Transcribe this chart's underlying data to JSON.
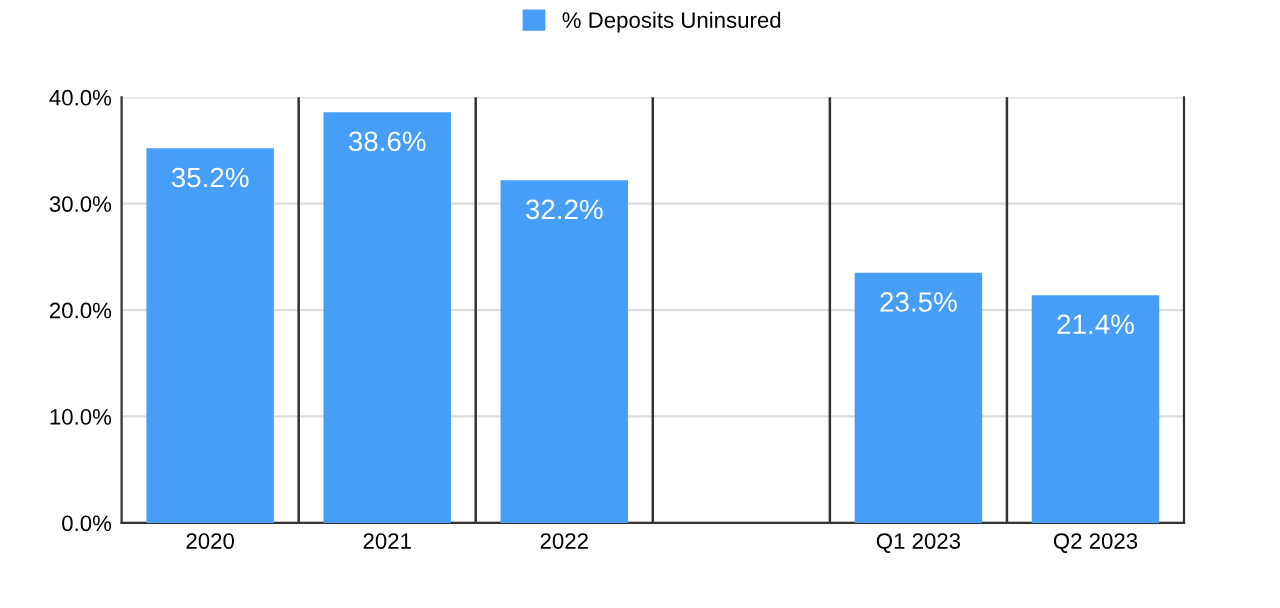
{
  "chart_data": {
    "type": "bar",
    "categories": [
      "2020",
      "2021",
      "2022",
      null,
      "Q1 2023",
      "Q2 2023"
    ],
    "series": [
      {
        "name": "% Deposits Uninsured",
        "color": "#479ef8",
        "values": [
          35.2,
          38.6,
          32.2,
          null,
          23.5,
          21.4
        ],
        "value_labels": [
          "35.2%",
          "38.6%",
          "32.2%",
          null,
          "23.5%",
          "21.4%"
        ]
      }
    ],
    "ylim": [
      0,
      40
    ],
    "yticks": [
      {
        "value": 0,
        "label": "0.0%"
      },
      {
        "value": 10,
        "label": "10.0%"
      },
      {
        "value": 20,
        "label": "20.0%"
      },
      {
        "value": 30,
        "label": "30.0%"
      },
      {
        "value": 40,
        "label": "40.0%"
      }
    ],
    "grid": "y",
    "legend": "top"
  }
}
